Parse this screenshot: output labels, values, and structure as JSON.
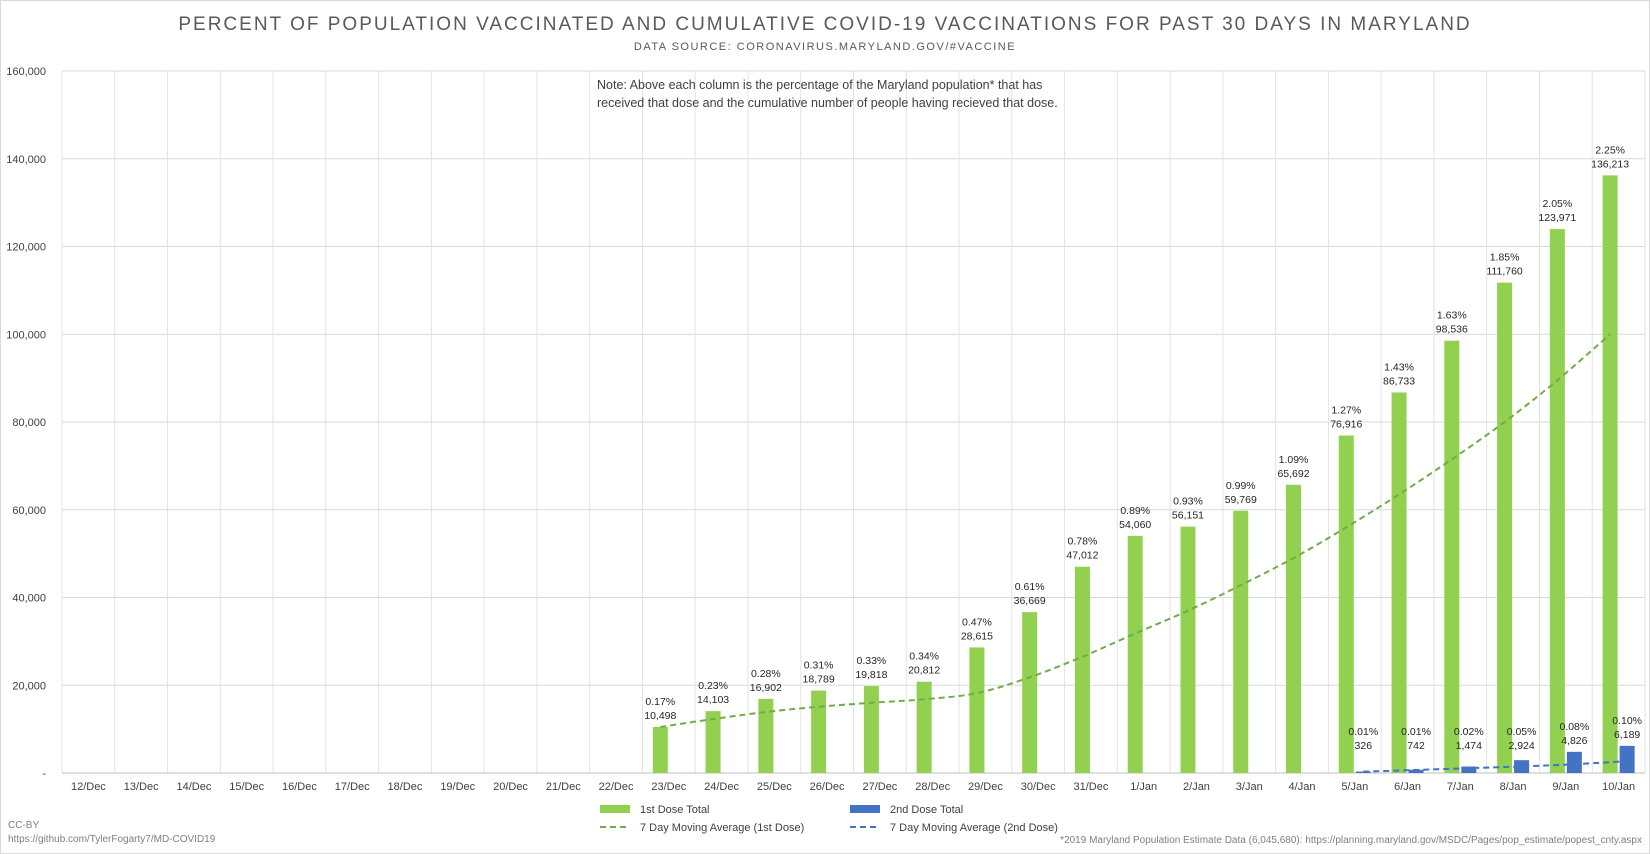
{
  "chart_data": {
    "type": "bar",
    "title": "PERCENT OF POPULATION VACCINATED AND CUMULATIVE COVID-19 VACCINATIONS FOR PAST 30 DAYS IN MARYLAND",
    "subtitle": "DATA SOURCE: CORONAVIRUS.MARYLAND.GOV/#VACCINE",
    "note_line1": "Note: Above each column is the percentage of the Maryland population* that has",
    "note_line2": "received that dose and the cumulative number of people having recieved that dose.",
    "categories": [
      "12/Dec",
      "13/Dec",
      "14/Dec",
      "15/Dec",
      "16/Dec",
      "17/Dec",
      "18/Dec",
      "19/Dec",
      "20/Dec",
      "21/Dec",
      "22/Dec",
      "23/Dec",
      "24/Dec",
      "25/Dec",
      "26/Dec",
      "27/Dec",
      "28/Dec",
      "29/Dec",
      "30/Dec",
      "31/Dec",
      "1/Jan",
      "2/Jan",
      "3/Jan",
      "4/Jan",
      "5/Jan",
      "6/Jan",
      "7/Jan",
      "8/Jan",
      "9/Jan",
      "10/Jan"
    ],
    "ylim": [
      0,
      160000
    ],
    "yticks": [
      0,
      20000,
      40000,
      60000,
      80000,
      100000,
      120000,
      140000,
      160000
    ],
    "ytick_labels": [
      "-",
      "20,000",
      "40,000",
      "60,000",
      "80,000",
      "100,000",
      "120,000",
      "140,000",
      "160,000"
    ],
    "grid": true,
    "legend_position": "bottom",
    "series": [
      {
        "name": "1st Dose Total",
        "kind": "bar",
        "color": "#92d050",
        "values": [
          null,
          null,
          null,
          null,
          null,
          null,
          null,
          null,
          null,
          null,
          null,
          10498,
          14103,
          16902,
          18789,
          19818,
          20812,
          28615,
          36669,
          47012,
          54060,
          56151,
          59769,
          65692,
          76916,
          86733,
          98536,
          111760,
          123971,
          136213
        ],
        "value_labels": [
          "",
          "",
          "",
          "",
          "",
          "",
          "",
          "",
          "",
          "",
          "",
          "10,498",
          "14,103",
          "16,902",
          "18,789",
          "19,818",
          "20,812",
          "28,615",
          "36,669",
          "47,012",
          "54,060",
          "56,151",
          "59,769",
          "65,692",
          "76,916",
          "86,733",
          "98,536",
          "111,760",
          "123,971",
          "136,213"
        ],
        "percent_labels": [
          "",
          "",
          "",
          "",
          "",
          "",
          "",
          "",
          "",
          "",
          "",
          "0.17%",
          "0.23%",
          "0.28%",
          "0.31%",
          "0.33%",
          "0.34%",
          "0.47%",
          "0.61%",
          "0.78%",
          "0.89%",
          "0.93%",
          "0.99%",
          "1.09%",
          "1.27%",
          "1.43%",
          "1.63%",
          "1.85%",
          "2.05%",
          "2.25%"
        ]
      },
      {
        "name": "2nd Dose Total",
        "kind": "bar",
        "color": "#4472c4",
        "values": [
          null,
          null,
          null,
          null,
          null,
          null,
          null,
          null,
          null,
          null,
          null,
          null,
          null,
          null,
          null,
          null,
          null,
          null,
          null,
          null,
          null,
          null,
          null,
          null,
          326,
          742,
          1474,
          2924,
          4826,
          6189
        ],
        "value_labels": [
          "",
          "",
          "",
          "",
          "",
          "",
          "",
          "",
          "",
          "",
          "",
          "",
          "",
          "",
          "",
          "",
          "",
          "",
          "",
          "",
          "",
          "",
          "",
          "",
          "326",
          "742",
          "1,474",
          "2,924",
          "4,826",
          "6,189"
        ],
        "percent_labels": [
          "",
          "",
          "",
          "",
          "",
          "",
          "",
          "",
          "",
          "",
          "",
          "",
          "",
          "",
          "",
          "",
          "",
          "",
          "",
          "",
          "",
          "",
          "",
          "",
          "0.01%",
          "0.01%",
          "0.02%",
          "0.05%",
          "0.08%",
          "0.10%"
        ]
      },
      {
        "name": "7 Day Moving Average (1st Dose)",
        "kind": "trendline",
        "color": "#70ad47",
        "values": [
          null,
          null,
          null,
          null,
          null,
          null,
          null,
          null,
          null,
          null,
          null,
          10500,
          12300,
          13900,
          15100,
          16000,
          16800,
          18200,
          21800,
          26500,
          31800,
          37000,
          42800,
          49000,
          56000,
          63500,
          71500,
          80000,
          89500,
          100000
        ]
      },
      {
        "name": "7 Day Moving Average (2nd Dose)",
        "kind": "trendline",
        "color": "#4472c4",
        "values": [
          null,
          null,
          null,
          null,
          null,
          null,
          null,
          null,
          null,
          null,
          null,
          null,
          null,
          null,
          null,
          null,
          null,
          null,
          null,
          null,
          null,
          null,
          null,
          null,
          300,
          700,
          1100,
          1500,
          2000,
          2700
        ]
      }
    ]
  },
  "footer": {
    "license": "CC-BY",
    "url": "https://github.com/TylerFogarty7/MD-COVID19",
    "source_note": "*2019 Maryland Population Estimate Data (6,045,680): https://planning.maryland.gov/MSDC/Pages/pop_estimate/popest_cnty.aspx"
  }
}
